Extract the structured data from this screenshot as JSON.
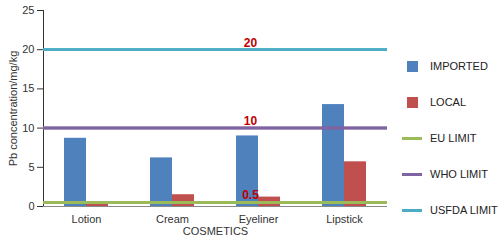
{
  "chart_data": {
    "type": "bar",
    "categories": [
      "Lotion",
      "Cream",
      "Eyeliner",
      "Lipstick"
    ],
    "xlabel": "COSMETICS",
    "ylabel": "Pb concentration/mg/kg",
    "ylim": [
      0,
      25
    ],
    "yticks": [
      0,
      5,
      10,
      15,
      20,
      25
    ],
    "grid": false,
    "legend": "right",
    "series": [
      {
        "name": "IMPORTED",
        "color": "#4f81bd",
        "values": [
          8.7,
          6.2,
          9.0,
          13.0
        ]
      },
      {
        "name": "LOCAL",
        "color": "#c0504d",
        "values": [
          0.5,
          1.5,
          1.2,
          5.7
        ]
      },
      {
        "name": "EU LIMIT",
        "type": "line",
        "color": "#9bbb59",
        "values": [
          0.5,
          0.5,
          0.5,
          0.5
        ]
      },
      {
        "name": "WHO LIMIT",
        "type": "line",
        "color": "#8064a2",
        "values": [
          10,
          10,
          10,
          10
        ]
      },
      {
        "name": "USFDA LIMIT",
        "type": "line",
        "color": "#4bacc6",
        "values": [
          20,
          20,
          20,
          20
        ]
      }
    ],
    "annotations": [
      {
        "text": "20",
        "x": "Eyeliner",
        "y": 20
      },
      {
        "text": "10",
        "x": "Eyeliner",
        "y": 10
      },
      {
        "text": "0.5",
        "x": "Eyeliner",
        "y": 0.5
      }
    ]
  }
}
